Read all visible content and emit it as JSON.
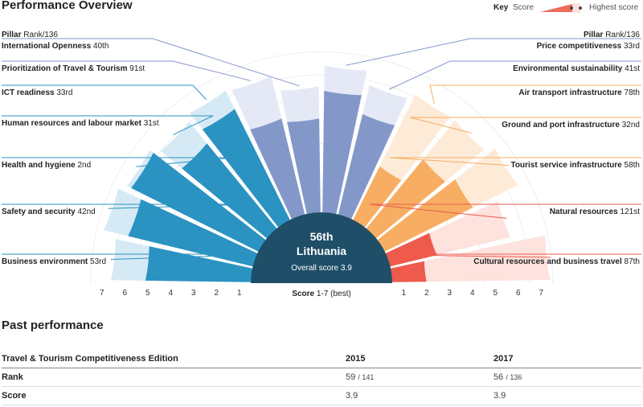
{
  "header": {
    "title": "Performance Overview"
  },
  "key": {
    "label": "Key",
    "score": "Score",
    "highest": "Highest score"
  },
  "pillar_headers": {
    "left_pillar": "Pillar",
    "left_rank": "Rank/136",
    "right_pillar": "Pillar",
    "right_rank": "Rank/136"
  },
  "center": {
    "rank": "56th",
    "country": "Lithuania",
    "score_label": "Overall score",
    "score_value": "3.9"
  },
  "axis_caption": {
    "bold": "Score",
    "rest": "1-7 (best)"
  },
  "colors": {
    "blue_dark": "#2a93c2",
    "blue_light": "#d6eaf5",
    "indigo_dark": "#8398c9",
    "indigo_light": "#e4e9f5",
    "orange_dark": "#f7ad62",
    "orange_light": "#fdebd8",
    "red_dark": "#ee5a4c",
    "red_light": "#fde2de",
    "center": "#1f4e68"
  },
  "chart_data": {
    "type": "radial_bar",
    "scale": [
      1,
      7
    ],
    "ticks": [
      "1",
      "2",
      "3",
      "4",
      "5",
      "6",
      "7"
    ],
    "pillars": [
      {
        "name": "Business environment",
        "rank": "53rd",
        "score": 4.6,
        "highest": 6.1,
        "side": "left",
        "group": "blue"
      },
      {
        "name": "Safety and security",
        "rank": "42nd",
        "score": 5.6,
        "highest": 6.7,
        "side": "left",
        "group": "blue"
      },
      {
        "name": "Health and hygiene",
        "rank": "2nd",
        "score": 6.2,
        "highest": 6.4,
        "side": "left",
        "group": "blue"
      },
      {
        "name": "Human resources and labour market",
        "rank": "31st",
        "score": 4.8,
        "highest": 6.0,
        "side": "left",
        "group": "blue"
      },
      {
        "name": "ICT readiness",
        "rank": "33rd",
        "score": 5.4,
        "highest": 6.3,
        "side": "left",
        "group": "blue"
      },
      {
        "name": "Prioritization of Travel & Tourism",
        "rank": "91st",
        "score": 4.3,
        "highest": 6.2,
        "side": "left",
        "group": "indigo"
      },
      {
        "name": "International Openness",
        "rank": "40th",
        "score": 4.1,
        "highest": 5.5,
        "side": "left",
        "group": "indigo"
      },
      {
        "name": "Price competitiveness",
        "rank": "33rd",
        "score": 5.3,
        "highest": 6.4,
        "side": "right",
        "group": "indigo"
      },
      {
        "name": "Environmental sustainability",
        "rank": "41st",
        "score": 4.5,
        "highest": 5.8,
        "side": "right",
        "group": "indigo"
      },
      {
        "name": "Air transport infrastructure",
        "rank": "78th",
        "score": 2.6,
        "highest": 6.1,
        "side": "right",
        "group": "orange"
      },
      {
        "name": "Ground and port infrastructure",
        "rank": "32nd",
        "score": 3.9,
        "highest": 6.1,
        "side": "right",
        "group": "orange"
      },
      {
        "name": "Tourist service infrastructure",
        "rank": "58th",
        "score": 4.3,
        "highest": 6.5,
        "side": "right",
        "group": "orange"
      },
      {
        "name": "Natural resources",
        "rank": "121st",
        "score": 2.1,
        "highest": 5.4,
        "side": "right",
        "group": "red"
      },
      {
        "name": "Cultural resources and business travel",
        "rank": "87th",
        "score": 1.5,
        "highest": 6.9,
        "side": "right",
        "group": "red"
      }
    ]
  },
  "past_performance": {
    "title": "Past performance",
    "columns": [
      "Travel & Tourism Competitiveness Edition",
      "2015",
      "2017"
    ],
    "rows": [
      {
        "label": "Rank",
        "v2015": "59",
        "v2015_total": "/ 141",
        "v2017": "56",
        "v2017_total": "/ 136"
      },
      {
        "label": "Score",
        "v2015": "3.9",
        "v2015_total": "",
        "v2017": "3.9",
        "v2017_total": ""
      }
    ]
  }
}
